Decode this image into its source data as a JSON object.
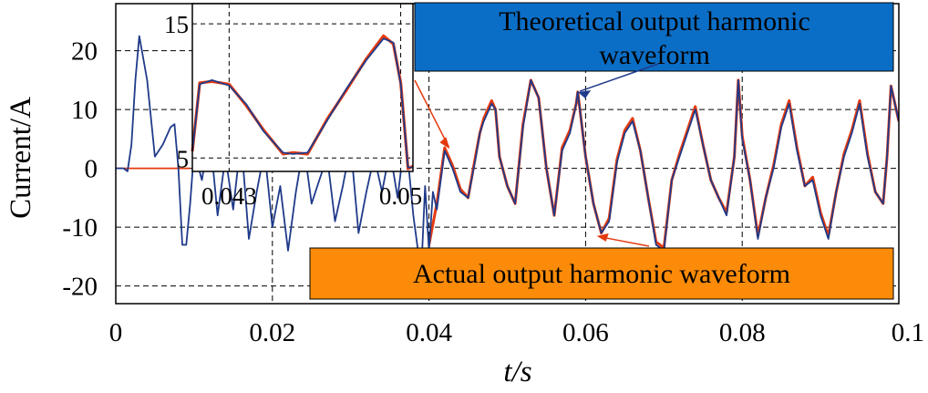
{
  "chart_data": {
    "type": "line",
    "xlabel": "t/s",
    "ylabel": "Current/A",
    "xlim": [
      0,
      0.1
    ],
    "ylim": [
      -23,
      28
    ],
    "xticks": [
      "0",
      "0.02",
      "0.04",
      "0.06",
      "0.08",
      "0.1"
    ],
    "yticks": [
      "-20",
      "-10",
      "0",
      "10",
      "20"
    ],
    "grid": "dashed, only at the marked ticks",
    "series": [
      {
        "name": "Theoretical output harmonic waveform",
        "color": "#1f3a8a",
        "x": [
          0,
          0.001,
          0.0015,
          0.002,
          0.0025,
          0.003,
          0.004,
          0.005,
          0.006,
          0.007,
          0.0075,
          0.008,
          0.0085,
          0.009,
          0.0095,
          0.01,
          0.011,
          0.012,
          0.013,
          0.014,
          0.015,
          0.016,
          0.017,
          0.018,
          0.019,
          0.02,
          0.021,
          0.022,
          0.023,
          0.024,
          0.025,
          0.026,
          0.027,
          0.028,
          0.029,
          0.03,
          0.031,
          0.032,
          0.033,
          0.034,
          0.035,
          0.036,
          0.037,
          0.038,
          0.039,
          0.0395,
          0.04,
          0.0405,
          0.041,
          0.042,
          0.043,
          0.044,
          0.045,
          0.046,
          0.0465,
          0.047,
          0.048,
          0.0485,
          0.049,
          0.05,
          0.051,
          0.052,
          0.053,
          0.054,
          0.055,
          0.056,
          0.057,
          0.058,
          0.0588,
          0.059,
          0.06,
          0.061,
          0.062,
          0.063,
          0.064,
          0.065,
          0.066,
          0.067,
          0.068,
          0.069,
          0.07,
          0.071,
          0.072,
          0.073,
          0.074,
          0.075,
          0.076,
          0.077,
          0.078,
          0.079,
          0.0795,
          0.08,
          0.081,
          0.082,
          0.083,
          0.084,
          0.085,
          0.086,
          0.087,
          0.088,
          0.089,
          0.09,
          0.091,
          0.092,
          0.093,
          0.094,
          0.095,
          0.096,
          0.097,
          0.098,
          0.0985,
          0.099,
          0.1
        ],
        "y": [
          0,
          0,
          -0.5,
          4,
          15,
          22.5,
          15,
          2,
          4,
          7,
          7.5,
          0,
          -13,
          -13,
          -6,
          3,
          -2,
          6,
          -8,
          2,
          -7,
          5,
          -12,
          -4,
          3,
          -10,
          -3,
          -14,
          -4,
          4,
          -6,
          -2,
          2,
          -9,
          -3,
          4,
          -11,
          -4,
          2,
          -4,
          3,
          -5,
          6,
          -8,
          -18,
          -3,
          -14,
          -4,
          -7,
          3,
          0,
          -4,
          -5,
          2,
          6,
          8,
          11,
          10,
          2,
          -3,
          -6,
          7,
          15,
          12,
          0,
          -8,
          3,
          6,
          11,
          13,
          2,
          -6,
          -11,
          -9,
          1,
          6,
          8,
          3,
          -5,
          -13,
          -14,
          -2,
          2,
          6,
          10,
          4,
          -2,
          -5,
          -8,
          2,
          15,
          5,
          -2,
          -12,
          -5,
          0,
          7,
          11,
          3,
          -3,
          -2,
          -8,
          -12,
          -4,
          2,
          6,
          11,
          2,
          -4,
          -6,
          2,
          14,
          8
        ]
      },
      {
        "name": "Actual output harmonic waveform",
        "color": "#e53a10",
        "x": [
          0.04,
          0.041,
          0.042,
          0.043,
          0.044,
          0.045,
          0.046,
          0.0465,
          0.047,
          0.048,
          0.0485,
          0.049,
          0.05,
          0.051,
          0.052,
          0.053,
          0.054,
          0.055,
          0.056,
          0.057,
          0.058,
          0.0588,
          0.059,
          0.06,
          0.061,
          0.062,
          0.063,
          0.064,
          0.065,
          0.066,
          0.067,
          0.068,
          0.069,
          0.07,
          0.071,
          0.072,
          0.073,
          0.074,
          0.075,
          0.076,
          0.077,
          0.078,
          0.079,
          0.0795,
          0.08,
          0.081,
          0.082,
          0.083,
          0.084,
          0.085,
          0.086,
          0.087,
          0.088,
          0.089,
          0.09,
          0.091,
          0.092,
          0.093,
          0.094,
          0.095,
          0.096,
          0.097,
          0.098,
          0.0985,
          0.099,
          0.1
        ],
        "y": [
          -13,
          -6,
          3.5,
          0.5,
          -3.5,
          -5,
          2.5,
          6,
          8.5,
          11.5,
          10,
          2,
          -3,
          -6,
          7.5,
          15,
          12,
          0,
          -8,
          3.5,
          6.5,
          11,
          13,
          2,
          -6,
          -11,
          -8.5,
          1.5,
          6.5,
          8.5,
          3,
          -5,
          -12.5,
          -13.5,
          -2,
          2.5,
          6.5,
          10.5,
          4,
          -2,
          -5,
          -7.5,
          2,
          15,
          5.5,
          -2,
          -11.5,
          -5,
          0.5,
          7.5,
          11.5,
          3.5,
          -3,
          -1.5,
          -7.5,
          -11.5,
          -4,
          2.5,
          6.5,
          11.5,
          2.5,
          -4,
          -6,
          2,
          14,
          8
        ]
      },
      {
        "name": "",
        "color": "#e53a10",
        "x": [
          0,
          0.0095
        ],
        "y": [
          0,
          0
        ]
      }
    ],
    "inset": {
      "xlim": [
        0.0415,
        0.0505
      ],
      "ylim": [
        4,
        16.5
      ],
      "xticks": [
        "0.043",
        "0.05"
      ],
      "yticks": [
        "5",
        "15"
      ],
      "series": [
        {
          "name": "Theoretical output harmonic waveform",
          "color": "#1f3a8a",
          "x": [
            0.0415,
            0.0418,
            0.0423,
            0.043,
            0.0437,
            0.0444,
            0.0452,
            0.0456,
            0.0462,
            0.047,
            0.0478,
            0.0486,
            0.0493,
            0.0497,
            0.05,
            0.0503,
            0.0505
          ],
          "y": [
            5.5,
            10.5,
            10.8,
            10.4,
            9.0,
            7.0,
            5.4,
            5.3,
            5.4,
            7.8,
            10.2,
            12.3,
            13.9,
            13.6,
            10.5,
            4.3,
            4.3
          ]
        },
        {
          "name": "Actual output harmonic waveform",
          "color": "#e53a10",
          "x": [
            0.0415,
            0.0418,
            0.0423,
            0.043,
            0.0437,
            0.0444,
            0.0452,
            0.0456,
            0.0462,
            0.047,
            0.0478,
            0.0486,
            0.0493,
            0.0497,
            0.05,
            0.0503,
            0.0505
          ],
          "y": [
            5.5,
            10.6,
            10.7,
            10.5,
            8.9,
            7.1,
            5.3,
            5.4,
            5.3,
            7.9,
            10.1,
            12.4,
            14.1,
            13.5,
            10.6,
            4.2,
            4.4
          ]
        }
      ]
    },
    "annotations": [
      {
        "text": "Theoretical output harmonic waveform",
        "color": "#0b6ec6",
        "points_to": [
          0.0588,
          12.8
        ]
      },
      {
        "text": "Actual output harmonic waveform",
        "color": "#fb8b08",
        "points_to": [
          0.0612,
          -11.5
        ]
      }
    ]
  }
}
